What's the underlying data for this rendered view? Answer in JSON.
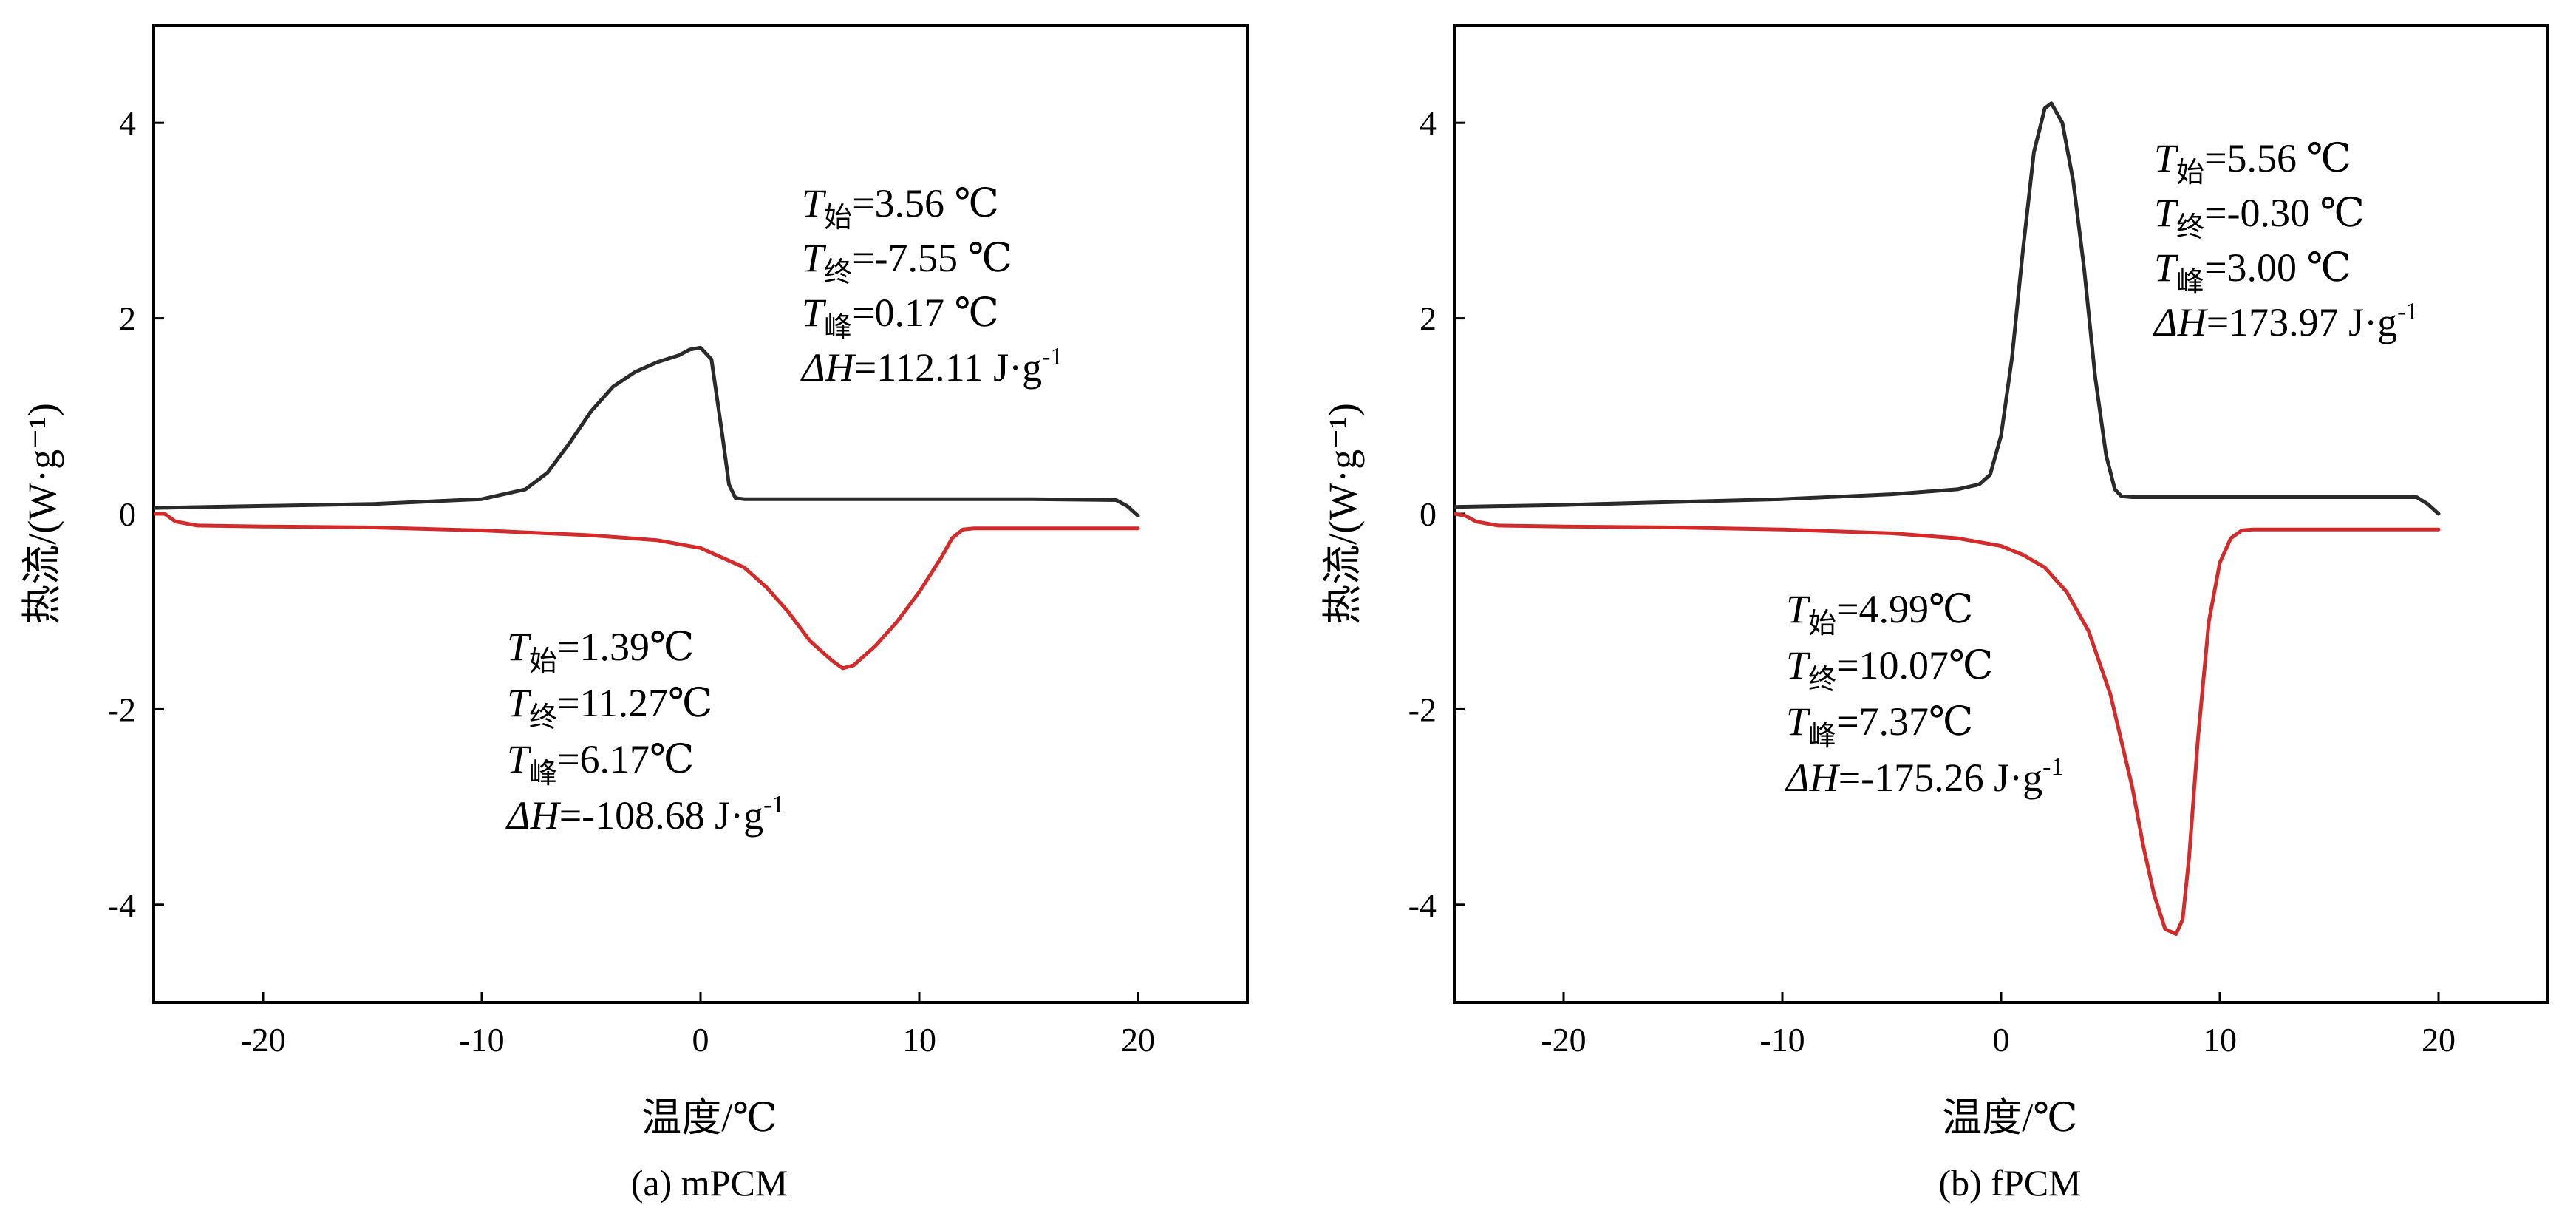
{
  "chart_data": [
    {
      "type": "line",
      "caption": "(a) mPCM",
      "xlabel": "温度/℃",
      "ylabel": "热流/(W·g⁻¹)",
      "xlim": [
        -25,
        25
      ],
      "ylim": [
        -5,
        5
      ],
      "xticks": [
        -20,
        -10,
        0,
        10,
        20
      ],
      "yticks": [
        -4,
        -2,
        0,
        2,
        4
      ],
      "grid": false,
      "series": [
        {
          "color": "#2a2a2a",
          "x": [
            -25,
            -20,
            -15,
            -10,
            -8,
            -7,
            -6,
            -5,
            -4,
            -3,
            -2,
            -1,
            -0.5,
            0,
            0.5,
            1,
            1.3,
            1.6,
            2,
            5,
            10,
            15,
            19,
            19.5,
            20
          ],
          "y": [
            0.06,
            0.08,
            0.1,
            0.15,
            0.25,
            0.42,
            0.72,
            1.05,
            1.3,
            1.45,
            1.55,
            1.62,
            1.68,
            1.7,
            1.58,
            0.8,
            0.3,
            0.16,
            0.15,
            0.15,
            0.15,
            0.15,
            0.14,
            0.08,
            -0.02
          ]
        },
        {
          "color": "#d42a2a",
          "x": [
            -25,
            -24.5,
            -24,
            -23,
            -20,
            -15,
            -10,
            -5,
            -2,
            0,
            2,
            3,
            4,
            5,
            6,
            6.5,
            7,
            8,
            9,
            10,
            11,
            11.5,
            12,
            12.5,
            15,
            20
          ],
          "y": [
            0.0,
            0.0,
            -0.08,
            -0.12,
            -0.13,
            -0.14,
            -0.17,
            -0.22,
            -0.27,
            -0.35,
            -0.55,
            -0.75,
            -1.0,
            -1.3,
            -1.5,
            -1.58,
            -1.55,
            -1.35,
            -1.1,
            -0.8,
            -0.45,
            -0.25,
            -0.16,
            -0.15,
            -0.15,
            -0.15
          ]
        }
      ],
      "annotations": {
        "upper": {
          "lines": [
            {
              "sym": "T",
              "sub": "始",
              "rest": "=3.56 ℃"
            },
            {
              "sym": "T",
              "sub": "终",
              "rest": "=-7.55 ℃"
            },
            {
              "sym": "T",
              "sub": "峰",
              "rest": "=0.17 ℃"
            },
            {
              "sym": "ΔH",
              "rest": "=112.11 J·g",
              "sup": "-1"
            }
          ]
        },
        "lower": {
          "lines": [
            {
              "sym": "T",
              "sub": "始",
              "rest": "=1.39℃"
            },
            {
              "sym": "T",
              "sub": "终",
              "rest": "=11.27℃"
            },
            {
              "sym": "T",
              "sub": "峰",
              "rest": "=6.17℃"
            },
            {
              "sym": "ΔH",
              "rest": "=-108.68 J·g",
              "sup": "-1"
            }
          ]
        }
      }
    },
    {
      "type": "line",
      "caption": "(b) fPCM",
      "xlabel": "温度/℃",
      "ylabel": "热流/(W·g⁻¹)",
      "xlim": [
        -25,
        25
      ],
      "ylim": [
        -5,
        5
      ],
      "xticks": [
        -20,
        -10,
        0,
        10,
        20
      ],
      "yticks": [
        -4,
        -2,
        0,
        2,
        4
      ],
      "grid": false,
      "series": [
        {
          "color": "#2a2a2a",
          "x": [
            -25,
            -20,
            -15,
            -10,
            -5,
            -2,
            -1,
            -0.5,
            0,
            0.5,
            1,
            1.5,
            2,
            2.3,
            2.8,
            3.3,
            3.8,
            4.3,
            4.8,
            5.2,
            5.5,
            6,
            10,
            15,
            19,
            19.5,
            20
          ],
          "y": [
            0.07,
            0.09,
            0.12,
            0.15,
            0.2,
            0.25,
            0.3,
            0.4,
            0.8,
            1.6,
            2.7,
            3.7,
            4.15,
            4.2,
            4.0,
            3.4,
            2.5,
            1.4,
            0.6,
            0.25,
            0.18,
            0.17,
            0.17,
            0.17,
            0.17,
            0.1,
            0.0
          ]
        },
        {
          "color": "#d42a2a",
          "x": [
            -25,
            -24.5,
            -24,
            -23,
            -20,
            -15,
            -10,
            -5,
            -2,
            0,
            1,
            2,
            3,
            4,
            5,
            6,
            6.5,
            7,
            7.5,
            8,
            8.3,
            8.6,
            9,
            9.5,
            10,
            10.5,
            11,
            11.5,
            12,
            15,
            20
          ],
          "y": [
            0.0,
            -0.02,
            -0.08,
            -0.12,
            -0.13,
            -0.14,
            -0.16,
            -0.2,
            -0.25,
            -0.33,
            -0.42,
            -0.55,
            -0.8,
            -1.2,
            -1.85,
            -2.8,
            -3.4,
            -3.9,
            -4.25,
            -4.3,
            -4.15,
            -3.5,
            -2.3,
            -1.1,
            -0.5,
            -0.25,
            -0.17,
            -0.16,
            -0.16,
            -0.16,
            -0.16
          ]
        }
      ],
      "annotations": {
        "upper": {
          "lines": [
            {
              "sym": "T",
              "sub": "始",
              "rest": "=5.56 ℃"
            },
            {
              "sym": "T",
              "sub": "终",
              "rest": "=-0.30 ℃"
            },
            {
              "sym": "T",
              "sub": "峰",
              "rest": "=3.00 ℃"
            },
            {
              "sym": "ΔH",
              "rest": "=173.97 J·g",
              "sup": "-1"
            }
          ]
        },
        "lower": {
          "lines": [
            {
              "sym": "T",
              "sub": "始",
              "rest": "=4.99℃"
            },
            {
              "sym": "T",
              "sub": "终",
              "rest": "=10.07℃"
            },
            {
              "sym": "T",
              "sub": "峰",
              "rest": "=7.37℃"
            },
            {
              "sym": "ΔH",
              "rest": "=-175.26 J·g",
              "sup": "-1"
            }
          ]
        }
      }
    }
  ]
}
